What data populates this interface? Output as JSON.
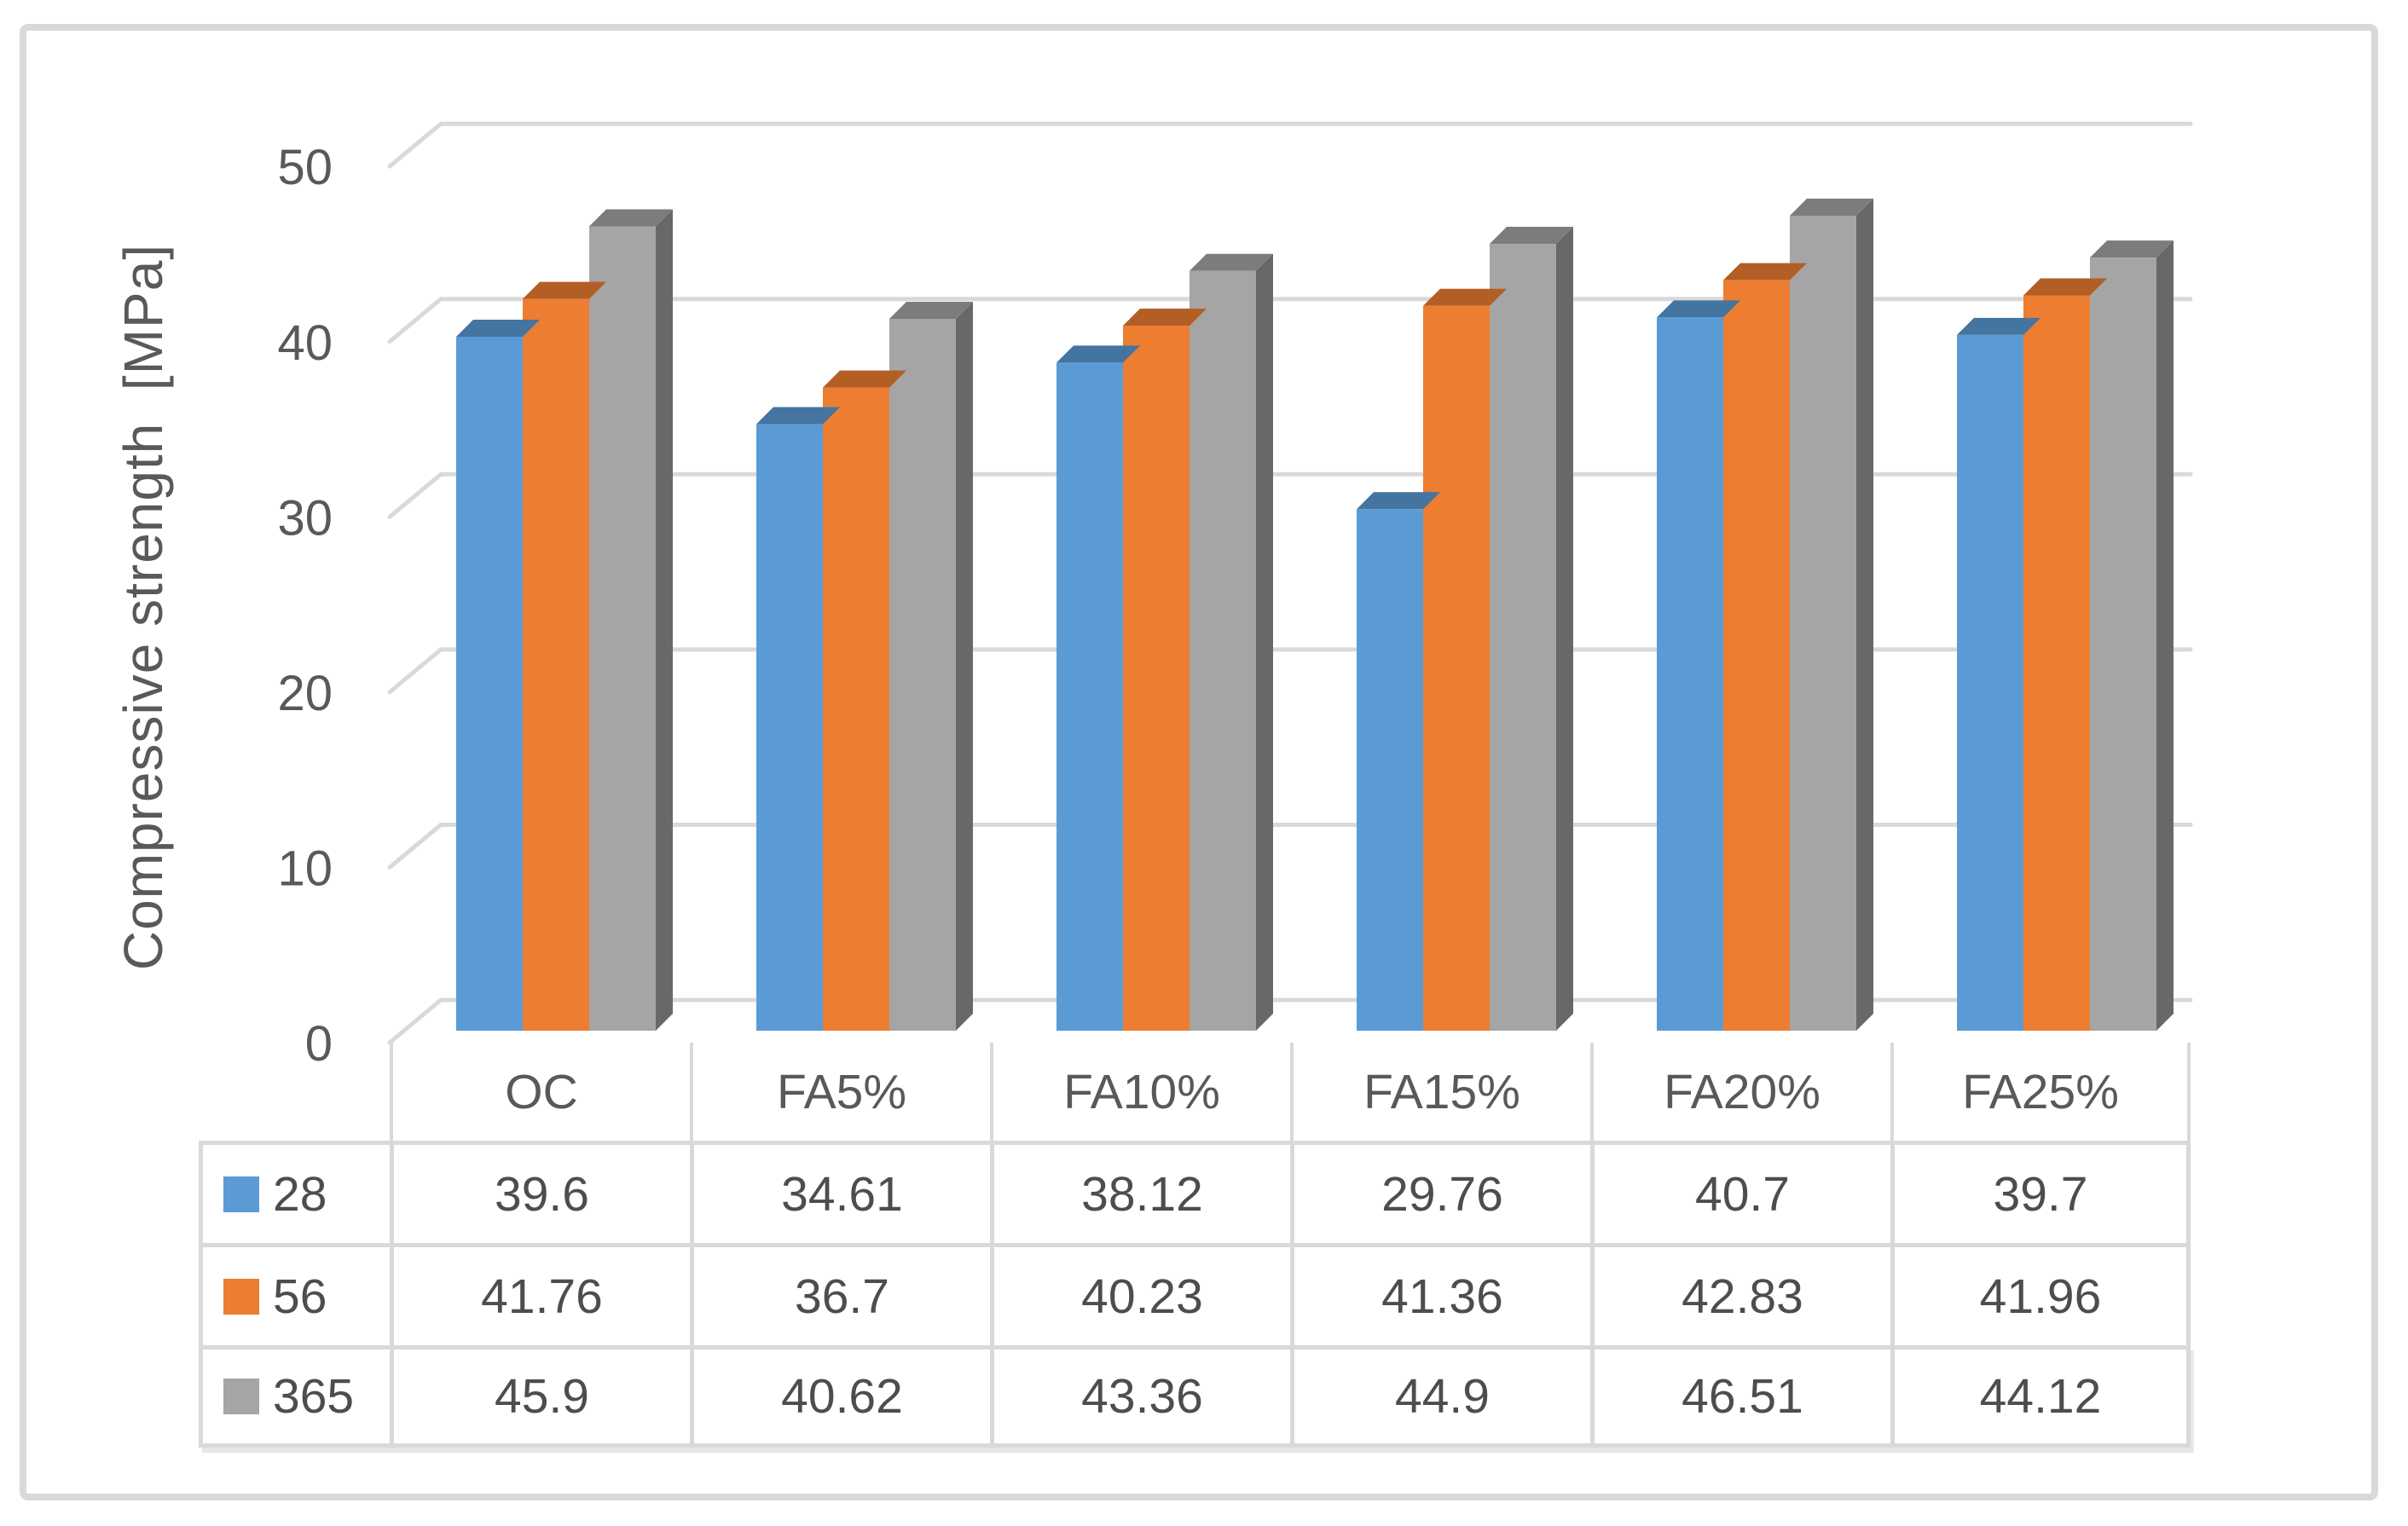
{
  "chart_data": {
    "type": "bar",
    "variant": "3d-clustered-column",
    "title": "",
    "ylabel": "Compressive strength  [MPa]",
    "xlabel": "",
    "categories": [
      "OC",
      "FA5%",
      "FA10%",
      "FA15%",
      "FA20%",
      "FA25%"
    ],
    "series": [
      {
        "name": "28",
        "color": "#5B9BD5",
        "values": [
          39.6,
          34.61,
          38.12,
          29.76,
          40.7,
          39.7
        ]
      },
      {
        "name": "56",
        "color": "#ED7D31",
        "values": [
          41.76,
          36.7,
          40.23,
          41.36,
          42.83,
          41.96
        ]
      },
      {
        "name": "365",
        "color": "#A5A5A5",
        "values": [
          45.9,
          40.62,
          43.36,
          44.9,
          46.51,
          44.12
        ]
      }
    ],
    "ylim": [
      0,
      50
    ],
    "yticks": [
      0,
      10,
      20,
      30,
      40,
      50
    ],
    "grid": true,
    "legend_position": "left-of-data-table",
    "gridline_color": "#D9D9D9",
    "axis_text_color": "#595959",
    "table_text_color": "#4D4D4D",
    "background": "#FFFFFF"
  }
}
